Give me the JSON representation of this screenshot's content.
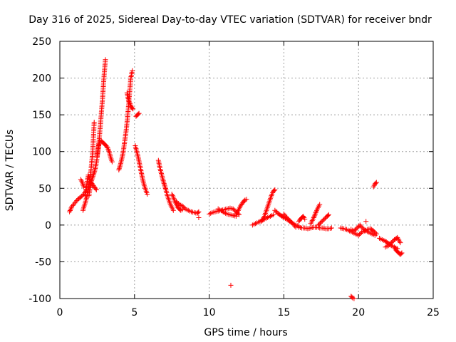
{
  "chart_data": {
    "type": "scatter",
    "title": "Day 316 of 2025, Sidereal Day-to-day VTEC variation (SDTVAR) for receiver bndr",
    "xlabel": "GPS time / hours",
    "ylabel": "SDTVAR / TECUs",
    "xlim": [
      0,
      25
    ],
    "ylim": [
      -100,
      250
    ],
    "xticks": [
      0,
      5,
      10,
      15,
      20,
      25
    ],
    "yticks": [
      -100,
      -50,
      0,
      50,
      100,
      150,
      200,
      250
    ],
    "grid": true,
    "marker": "+",
    "color": "#ff0000",
    "segments": [
      {
        "x": [
          0.65,
          0.8,
          1.0,
          1.2,
          1.4,
          1.6,
          1.8
        ],
        "y": [
          18,
          25,
          30,
          35,
          38,
          42,
          48
        ]
      },
      {
        "x": [
          1.4,
          1.5,
          1.6
        ],
        "y": [
          62,
          58,
          52
        ]
      },
      {
        "x": [
          1.55,
          1.6,
          1.7,
          1.8,
          1.9,
          2.0,
          2.1,
          2.2,
          2.3
        ],
        "y": [
          20,
          24,
          30,
          38,
          48,
          60,
          78,
          100,
          140
        ]
      },
      {
        "x": [
          1.7,
          1.8,
          1.9,
          2.0,
          2.1,
          2.2,
          2.3,
          2.45
        ],
        "y": [
          40,
          55,
          68,
          62,
          58,
          55,
          52,
          48
        ]
      },
      {
        "x": [
          1.95,
          2.05,
          2.15,
          2.25,
          2.35,
          2.45,
          2.55,
          2.65,
          2.75,
          2.85,
          2.95,
          3.05
        ],
        "y": [
          40,
          55,
          62,
          68,
          75,
          85,
          100,
          120,
          145,
          170,
          200,
          225
        ]
      },
      {
        "x": [
          2.5,
          2.6,
          2.7,
          2.8,
          2.9,
          3.0,
          3.1,
          3.2,
          3.3,
          3.4,
          3.5
        ],
        "y": [
          95,
          108,
          115,
          114,
          112,
          110,
          108,
          105,
          100,
          92,
          86
        ]
      },
      {
        "x": [
          3.95,
          4.05,
          4.15,
          4.25,
          4.35,
          4.45,
          4.55,
          4.65,
          4.75,
          4.85
        ],
        "y": [
          75,
          82,
          90,
          100,
          115,
          130,
          150,
          175,
          200,
          210
        ]
      },
      {
        "x": [
          4.5,
          4.6,
          4.7,
          4.8,
          4.9
        ],
        "y": [
          180,
          170,
          165,
          160,
          158
        ]
      },
      {
        "x": [
          5.1,
          5.2,
          5.3
        ],
        "y": [
          148,
          150,
          152
        ]
      },
      {
        "x": [
          5.05,
          5.15,
          5.25,
          5.35,
          5.45,
          5.55,
          5.65,
          5.75,
          5.85
        ],
        "y": [
          108,
          100,
          92,
          82,
          72,
          62,
          54,
          48,
          42
        ]
      },
      {
        "x": [
          6.6,
          6.7,
          6.8,
          6.9,
          7.0,
          7.1,
          7.2,
          7.3,
          7.4,
          7.5,
          7.6
        ],
        "y": [
          88,
          78,
          70,
          62,
          55,
          48,
          40,
          34,
          28,
          24,
          20
        ]
      },
      {
        "x": [
          7.5,
          7.6,
          7.7,
          7.8,
          7.9,
          8.0,
          8.1,
          8.2
        ],
        "y": [
          42,
          38,
          32,
          28,
          24,
          22,
          20,
          21
        ]
      },
      {
        "x": [
          7.8,
          8.0,
          8.2,
          8.4,
          8.6,
          8.8,
          9.0,
          9.2,
          9.3
        ],
        "y": [
          32,
          28,
          26,
          22,
          20,
          18,
          17,
          16,
          18
        ]
      },
      {
        "x": [
          9.3
        ],
        "y": [
          10
        ]
      },
      {
        "x": [
          10.0,
          10.2,
          10.4,
          10.6,
          10.8,
          11.0,
          11.2,
          11.4,
          11.6,
          11.8,
          12.0
        ],
        "y": [
          15,
          17,
          18,
          19,
          20,
          21,
          22,
          23,
          22,
          18,
          14
        ]
      },
      {
        "x": [
          10.6,
          10.8,
          11.0,
          11.2,
          11.4,
          11.6,
          11.8
        ],
        "y": [
          22,
          20,
          17,
          15,
          14,
          13,
          12
        ]
      },
      {
        "x": [
          11.8,
          11.9,
          12.0,
          12.1,
          12.2,
          12.3,
          12.4,
          12.5
        ],
        "y": [
          14,
          18,
          22,
          26,
          29,
          32,
          34,
          35
        ]
      },
      {
        "x": [
          11.45
        ],
        "y": [
          -82
        ]
      },
      {
        "x": [
          12.9,
          13.1,
          13.3,
          13.5,
          13.7,
          13.9,
          14.1,
          14.3
        ],
        "y": [
          0,
          2,
          4,
          6,
          8,
          10,
          12,
          14
        ]
      },
      {
        "x": [
          13.5,
          13.6,
          13.7,
          13.8,
          13.9,
          14.0,
          14.1,
          14.2,
          14.3,
          14.4
        ],
        "y": [
          5,
          8,
          12,
          18,
          24,
          30,
          36,
          42,
          46,
          48
        ]
      },
      {
        "x": [
          14.4,
          14.6,
          14.8,
          15.0,
          15.2,
          15.4,
          15.6,
          15.8,
          16.0
        ],
        "y": [
          20,
          16,
          13,
          10,
          8,
          5,
          2,
          0,
          -2
        ]
      },
      {
        "x": [
          15.0,
          15.2,
          15.4,
          15.6,
          15.8
        ],
        "y": [
          15,
          10,
          6,
          2,
          -3
        ]
      },
      {
        "x": [
          16.0,
          16.2,
          16.4,
          16.6,
          16.8,
          17.0,
          17.2,
          17.4,
          17.6,
          17.8,
          18.0,
          18.2
        ],
        "y": [
          -3,
          -4,
          -4,
          -5,
          -4,
          -3,
          -3,
          -4,
          -4,
          -5,
          -5,
          -4
        ]
      },
      {
        "x": [
          16.0,
          16.1,
          16.2,
          16.3,
          16.4
        ],
        "y": [
          5,
          8,
          10,
          12,
          8
        ]
      },
      {
        "x": [
          16.8,
          16.9,
          17.0,
          17.1,
          17.2,
          17.3,
          17.4
        ],
        "y": [
          2,
          6,
          10,
          15,
          20,
          24,
          28
        ]
      },
      {
        "x": [
          17.3,
          17.5,
          17.7,
          17.9,
          18.0
        ],
        "y": [
          0,
          4,
          8,
          12,
          14
        ]
      },
      {
        "x": [
          18.8,
          19.0,
          19.2,
          19.4,
          19.6,
          19.8,
          20.0,
          20.2,
          20.4,
          20.6,
          20.8,
          21.0,
          21.2
        ],
        "y": [
          -4,
          -5,
          -6,
          -8,
          -10,
          -12,
          -14,
          -10,
          -8,
          -6,
          -5,
          -8,
          -12
        ]
      },
      {
        "x": [
          19.5,
          19.7,
          19.9,
          20.1,
          20.3,
          20.5,
          20.7,
          20.9,
          21.1
        ],
        "y": [
          -6,
          -8,
          -4,
          0,
          -5,
          -8,
          -10,
          -12,
          -14
        ]
      },
      {
        "x": [
          19.5,
          19.6,
          19.7
        ],
        "y": [
          -97,
          -99,
          -100
        ]
      },
      {
        "x": [
          20.5
        ],
        "y": [
          5
        ]
      },
      {
        "x": [
          21.0,
          21.1,
          21.2
        ],
        "y": [
          52,
          56,
          58
        ]
      },
      {
        "x": [
          21.4,
          21.6,
          21.8,
          22.0,
          22.2,
          22.4,
          22.6
        ],
        "y": [
          -18,
          -20,
          -22,
          -25,
          -28,
          -30,
          -32
        ]
      },
      {
        "x": [
          21.8,
          22.0,
          22.2,
          22.4,
          22.6,
          22.8
        ],
        "y": [
          -30,
          -28,
          -24,
          -20,
          -17,
          -24
        ]
      },
      {
        "x": [
          22.4,
          22.5,
          22.6,
          22.7,
          22.8,
          22.9
        ],
        "y": [
          -30,
          -34,
          -36,
          -38,
          -40,
          -38
        ]
      }
    ]
  }
}
